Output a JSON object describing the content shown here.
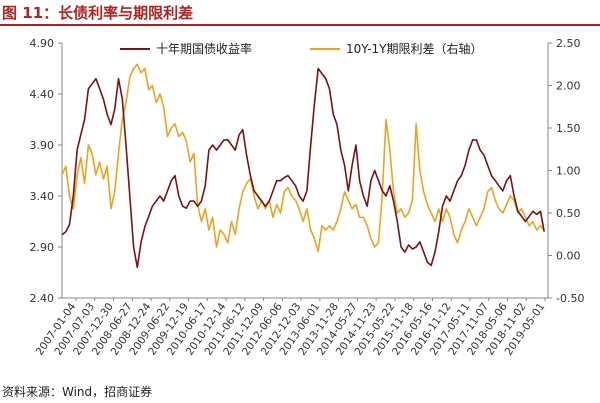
{
  "header": {
    "figure_title": "图 11：长债利率与期限利差"
  },
  "footer": {
    "source": "资料来源：Wind，招商证券"
  },
  "colors": {
    "title": "#b22222",
    "series_long_rate": "#7b1113",
    "series_spread": "#f0a21f"
  },
  "chart_data": {
    "type": "line",
    "title": "",
    "xlabel": "",
    "ylabel": "",
    "legend_position": "top-center",
    "grid": false,
    "x_tick_labels": [
      "2007-01-04",
      "2007-07-03",
      "2007-12-30",
      "2008-06-27",
      "2008-12-24",
      "2009-06-22",
      "2009-12-19",
      "2010-06-17",
      "2010-12-14",
      "2011-06-12",
      "2011-12-09",
      "2012-06-06",
      "2012-12-03",
      "2013-06-01",
      "2013-11-28",
      "2014-05-27",
      "2014-11-23",
      "2015-05-22",
      "2015-11-18",
      "2016-05-16",
      "2016-11-12",
      "2017-05-11",
      "2017-11-07",
      "2018-05-06",
      "2018-11-02",
      "2019-05-01"
    ],
    "y_left": {
      "ticks": [
        2.4,
        2.9,
        3.4,
        3.9,
        4.4,
        4.9
      ],
      "tick_labels": [
        "2.40",
        "2.90",
        "3.40",
        "3.90",
        "4.40",
        "4.90"
      ],
      "range": [
        2.4,
        4.9
      ]
    },
    "y_right": {
      "ticks": [
        -0.5,
        0.0,
        0.5,
        1.0,
        1.5,
        2.0,
        2.5
      ],
      "tick_labels": [
        "-0.50",
        "0.00",
        "0.50",
        "1.00",
        "1.50",
        "2.00",
        "2.50"
      ],
      "range": [
        -0.5,
        2.5
      ]
    },
    "series": [
      {
        "name": "十年期国债收益率",
        "axis": "left",
        "x": [
          2007.0,
          2007.1,
          2007.2,
          2007.3,
          2007.4,
          2007.5,
          2007.6,
          2007.7,
          2007.8,
          2007.9,
          2008.0,
          2008.1,
          2008.2,
          2008.3,
          2008.4,
          2008.5,
          2008.6,
          2008.7,
          2008.8,
          2008.9,
          2009.0,
          2009.1,
          2009.2,
          2009.3,
          2009.4,
          2009.5,
          2009.6,
          2009.7,
          2009.8,
          2009.9,
          2010.0,
          2010.1,
          2010.2,
          2010.3,
          2010.4,
          2010.5,
          2010.6,
          2010.7,
          2010.8,
          2010.9,
          2011.0,
          2011.1,
          2011.2,
          2011.3,
          2011.4,
          2011.5,
          2011.6,
          2011.7,
          2011.8,
          2011.9,
          2012.0,
          2012.1,
          2012.2,
          2012.3,
          2012.4,
          2012.5,
          2012.6,
          2012.7,
          2012.8,
          2012.9,
          2013.0,
          2013.1,
          2013.2,
          2013.3,
          2013.4,
          2013.5,
          2013.6,
          2013.7,
          2013.8,
          2013.9,
          2014.0,
          2014.1,
          2014.2,
          2014.3,
          2014.4,
          2014.5,
          2014.6,
          2014.7,
          2014.8,
          2014.9,
          2015.0,
          2015.1,
          2015.2,
          2015.3,
          2015.4,
          2015.5,
          2015.6,
          2015.7,
          2015.8,
          2015.9,
          2016.0,
          2016.1,
          2016.2,
          2016.3,
          2016.4,
          2016.5,
          2016.6,
          2016.7,
          2016.8,
          2016.9,
          2017.0,
          2017.1,
          2017.2,
          2017.3,
          2017.4,
          2017.5,
          2017.6,
          2017.7,
          2017.8,
          2017.9,
          2018.0,
          2018.1,
          2018.2,
          2018.3,
          2018.4,
          2018.5,
          2018.6,
          2018.7,
          2018.8,
          2018.9,
          2019.0,
          2019.1,
          2019.2,
          2019.3,
          2019.4,
          2019.5,
          2019.6,
          2019.7,
          2019.8
        ],
        "values": [
          3.02,
          3.05,
          3.12,
          3.4,
          3.85,
          4.0,
          4.15,
          4.45,
          4.5,
          4.55,
          4.45,
          4.35,
          4.2,
          4.1,
          4.25,
          4.55,
          4.35,
          3.9,
          3.4,
          2.9,
          2.7,
          2.95,
          3.1,
          3.2,
          3.3,
          3.35,
          3.4,
          3.35,
          3.45,
          3.55,
          3.6,
          3.4,
          3.3,
          3.28,
          3.35,
          3.35,
          3.3,
          3.35,
          3.5,
          3.85,
          3.9,
          3.85,
          3.9,
          3.95,
          3.95,
          3.9,
          3.85,
          4.0,
          4.05,
          3.8,
          3.6,
          3.45,
          3.4,
          3.35,
          3.3,
          3.35,
          3.45,
          3.55,
          3.55,
          3.58,
          3.6,
          3.55,
          3.5,
          3.4,
          3.35,
          3.45,
          3.9,
          4.3,
          4.65,
          4.6,
          4.55,
          4.45,
          4.2,
          4.1,
          3.85,
          3.7,
          3.45,
          3.7,
          3.9,
          3.55,
          3.4,
          3.3,
          3.55,
          3.65,
          3.55,
          3.45,
          3.4,
          3.5,
          3.35,
          3.15,
          2.9,
          2.85,
          2.92,
          2.88,
          2.9,
          2.95,
          2.85,
          2.75,
          2.72,
          2.85,
          3.05,
          3.3,
          3.4,
          3.35,
          3.45,
          3.55,
          3.6,
          3.7,
          3.85,
          3.95,
          3.95,
          3.85,
          3.8,
          3.7,
          3.6,
          3.55,
          3.5,
          3.45,
          3.55,
          3.6,
          3.4,
          3.25,
          3.2,
          3.15,
          3.2,
          3.25,
          3.22,
          3.25,
          3.05
        ]
      },
      {
        "name": "10Y-1Y期限利差（右轴）",
        "axis": "right",
        "x": [
          2007.0,
          2007.1,
          2007.2,
          2007.3,
          2007.4,
          2007.5,
          2007.6,
          2007.7,
          2007.8,
          2007.9,
          2008.0,
          2008.1,
          2008.2,
          2008.3,
          2008.4,
          2008.5,
          2008.6,
          2008.7,
          2008.8,
          2008.9,
          2009.0,
          2009.1,
          2009.2,
          2009.3,
          2009.4,
          2009.5,
          2009.6,
          2009.7,
          2009.8,
          2009.9,
          2010.0,
          2010.1,
          2010.2,
          2010.3,
          2010.4,
          2010.5,
          2010.6,
          2010.7,
          2010.8,
          2010.9,
          2011.0,
          2011.1,
          2011.2,
          2011.3,
          2011.4,
          2011.5,
          2011.6,
          2011.7,
          2011.8,
          2011.9,
          2012.0,
          2012.1,
          2012.2,
          2012.3,
          2012.4,
          2012.5,
          2012.6,
          2012.7,
          2012.8,
          2012.9,
          2013.0,
          2013.1,
          2013.2,
          2013.3,
          2013.4,
          2013.5,
          2013.6,
          2013.7,
          2013.8,
          2013.9,
          2014.0,
          2014.1,
          2014.2,
          2014.3,
          2014.4,
          2014.5,
          2014.6,
          2014.7,
          2014.8,
          2014.9,
          2015.0,
          2015.1,
          2015.2,
          2015.3,
          2015.4,
          2015.5,
          2015.6,
          2015.7,
          2015.8,
          2015.9,
          2016.0,
          2016.1,
          2016.2,
          2016.3,
          2016.4,
          2016.5,
          2016.6,
          2016.7,
          2016.8,
          2016.9,
          2017.0,
          2017.1,
          2017.2,
          2017.3,
          2017.4,
          2017.5,
          2017.6,
          2017.7,
          2017.8,
          2017.9,
          2018.0,
          2018.1,
          2018.2,
          2018.3,
          2018.4,
          2018.5,
          2018.6,
          2018.7,
          2018.8,
          2018.9,
          2019.0,
          2019.1,
          2019.2,
          2019.3,
          2019.4,
          2019.5,
          2019.6,
          2019.7,
          2019.8
        ],
        "values": [
          0.95,
          1.05,
          0.7,
          0.55,
          0.95,
          1.15,
          0.85,
          1.3,
          1.2,
          0.95,
          1.1,
          0.9,
          1.05,
          0.55,
          0.75,
          1.2,
          1.6,
          1.8,
          2.1,
          2.2,
          2.25,
          2.15,
          2.2,
          1.95,
          2.0,
          1.8,
          1.9,
          1.75,
          1.4,
          1.5,
          1.55,
          1.4,
          1.45,
          1.35,
          1.1,
          1.2,
          0.6,
          0.4,
          0.55,
          0.3,
          0.45,
          0.1,
          0.3,
          0.25,
          0.15,
          0.4,
          0.25,
          0.55,
          0.75,
          0.85,
          0.9,
          0.7,
          0.55,
          0.65,
          0.55,
          0.65,
          0.45,
          0.6,
          0.5,
          0.75,
          0.8,
          0.7,
          0.65,
          0.55,
          0.4,
          0.55,
          0.3,
          0.2,
          0.05,
          0.35,
          0.3,
          0.35,
          0.3,
          0.4,
          0.55,
          0.75,
          0.65,
          0.55,
          0.6,
          0.45,
          0.45,
          0.35,
          0.2,
          0.1,
          0.15,
          0.7,
          1.6,
          1.25,
          0.75,
          0.5,
          0.55,
          0.45,
          0.5,
          0.65,
          1.55,
          1.0,
          0.75,
          0.6,
          0.5,
          0.4,
          0.55,
          0.4,
          0.55,
          0.45,
          0.25,
          0.15,
          0.3,
          0.4,
          0.55,
          0.45,
          0.35,
          0.45,
          0.55,
          0.75,
          0.8,
          0.65,
          0.55,
          0.5,
          0.6,
          0.7,
          0.65,
          0.5,
          0.55,
          0.45,
          0.35,
          0.4,
          0.3,
          0.35,
          0.3
        ]
      }
    ]
  }
}
